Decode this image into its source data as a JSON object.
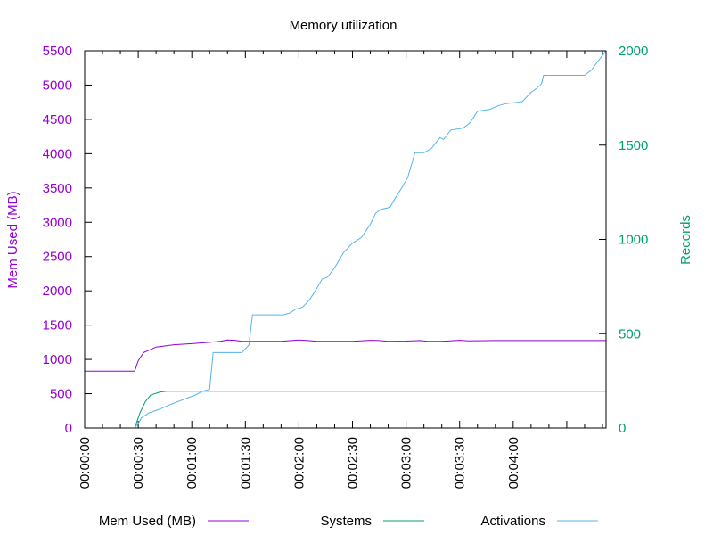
{
  "chart_data": {
    "type": "line",
    "title": "Memory utilization",
    "y_left": {
      "label": "Mem Used (MB)",
      "ylim": [
        0,
        5500
      ],
      "ticks": [
        "0",
        "500",
        "1000",
        "1500",
        "2000",
        "2500",
        "3000",
        "3500",
        "4000",
        "4500",
        "5000",
        "5500"
      ],
      "color": "#9400d3"
    },
    "y_right": {
      "label": "Records",
      "ylim": [
        0,
        2000
      ],
      "ticks": [
        "0",
        "500",
        "1000",
        "1500",
        "2000"
      ],
      "color": "#009e73"
    },
    "x_axis": {
      "unit": "seconds",
      "xlim": [
        0,
        292
      ],
      "ticks": [
        "00:00:00",
        "00:00:30",
        "00:01:00",
        "00:01:30",
        "00:02:00",
        "00:02:30",
        "00:03:00",
        "00:03:30",
        "00:04:00"
      ]
    },
    "grid": false,
    "legend_position": "bottom",
    "series": [
      {
        "name": "Mem Used (MB)",
        "axis": "left",
        "color": "#9400d3",
        "points": [
          [
            0,
            830
          ],
          [
            28,
            830
          ],
          [
            30,
            980
          ],
          [
            33,
            1100
          ],
          [
            40,
            1180
          ],
          [
            50,
            1215
          ],
          [
            60,
            1230
          ],
          [
            70,
            1250
          ],
          [
            76,
            1265
          ],
          [
            80,
            1285
          ],
          [
            84,
            1280
          ],
          [
            88,
            1265
          ],
          [
            110,
            1265
          ],
          [
            120,
            1285
          ],
          [
            125,
            1275
          ],
          [
            130,
            1265
          ],
          [
            150,
            1265
          ],
          [
            160,
            1280
          ],
          [
            165,
            1275
          ],
          [
            170,
            1265
          ],
          [
            180,
            1268
          ],
          [
            188,
            1275
          ],
          [
            192,
            1265
          ],
          [
            200,
            1265
          ],
          [
            210,
            1280
          ],
          [
            215,
            1272
          ],
          [
            230,
            1275
          ],
          [
            292,
            1275
          ]
        ]
      },
      {
        "name": "Systems",
        "axis": "right",
        "color": "#009e73",
        "points": [
          [
            0,
            0
          ],
          [
            28,
            0
          ],
          [
            31,
            80
          ],
          [
            34,
            140
          ],
          [
            37,
            175
          ],
          [
            42,
            190
          ],
          [
            46,
            195
          ],
          [
            292,
            195
          ]
        ]
      },
      {
        "name": "Activations",
        "axis": "right",
        "color": "#56b4e9",
        "points": [
          [
            0,
            0
          ],
          [
            28,
            0
          ],
          [
            30,
            25
          ],
          [
            32,
            55
          ],
          [
            36,
            80
          ],
          [
            42,
            100
          ],
          [
            48,
            125
          ],
          [
            55,
            150
          ],
          [
            62,
            175
          ],
          [
            66,
            195
          ],
          [
            70,
            205
          ],
          [
            72,
            400
          ],
          [
            88,
            400
          ],
          [
            92,
            440
          ],
          [
            94,
            600
          ],
          [
            111,
            600
          ],
          [
            115,
            610
          ],
          [
            118,
            630
          ],
          [
            122,
            640
          ],
          [
            126,
            680
          ],
          [
            130,
            740
          ],
          [
            133,
            790
          ],
          [
            136,
            800
          ],
          [
            140,
            850
          ],
          [
            145,
            930
          ],
          [
            150,
            980
          ],
          [
            155,
            1010
          ],
          [
            160,
            1080
          ],
          [
            163,
            1140
          ],
          [
            166,
            1160
          ],
          [
            171,
            1170
          ],
          [
            174,
            1220
          ],
          [
            178,
            1280
          ],
          [
            181,
            1330
          ],
          [
            185,
            1460
          ],
          [
            190,
            1460
          ],
          [
            194,
            1480
          ],
          [
            199,
            1540
          ],
          [
            201,
            1530
          ],
          [
            205,
            1580
          ],
          [
            212,
            1590
          ],
          [
            216,
            1620
          ],
          [
            220,
            1680
          ],
          [
            227,
            1690
          ],
          [
            232,
            1710
          ],
          [
            236,
            1720
          ],
          [
            245,
            1730
          ],
          [
            250,
            1780
          ],
          [
            253,
            1800
          ],
          [
            254,
            1810
          ],
          [
            255,
            1815
          ],
          [
            256,
            1830
          ],
          [
            257,
            1870
          ],
          [
            280,
            1870
          ],
          [
            284,
            1900
          ],
          [
            287,
            1940
          ],
          [
            290,
            1975
          ],
          [
            292,
            2000
          ]
        ]
      }
    ]
  }
}
